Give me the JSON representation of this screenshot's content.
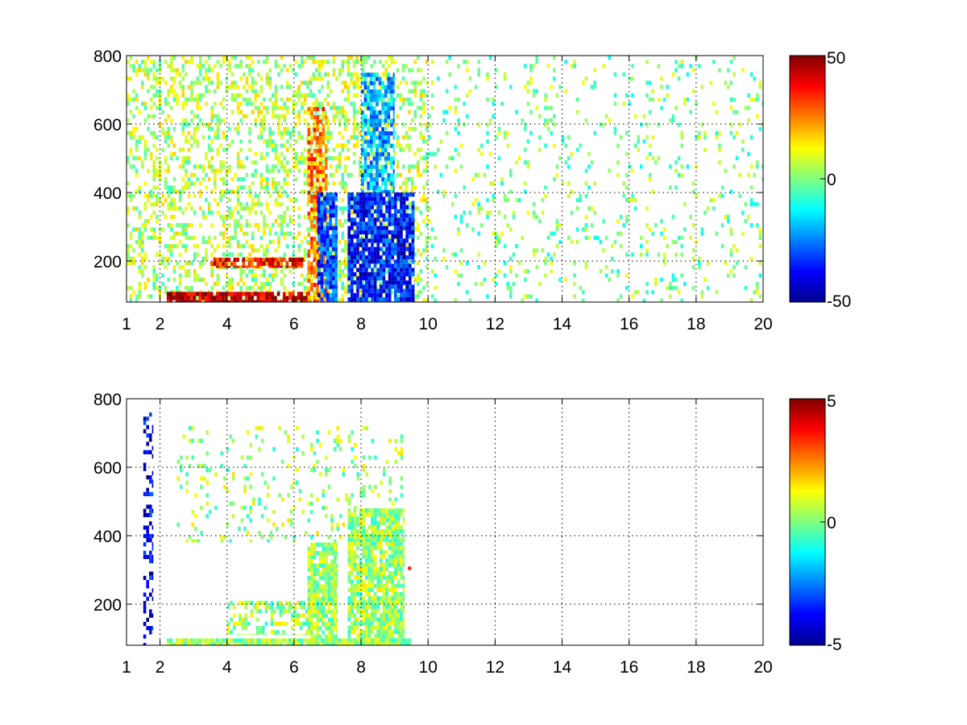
{
  "chart_data": [
    {
      "type": "heatmap",
      "title": "",
      "xlabel": "",
      "ylabel": "",
      "xlim": [
        1,
        20
      ],
      "ylim": [
        80,
        800
      ],
      "xticks": [
        1,
        2,
        4,
        6,
        8,
        10,
        12,
        14,
        16,
        18,
        20
      ],
      "yticks": [
        200,
        400,
        600,
        800
      ],
      "grid": true,
      "colormap": "jet",
      "colorbar": {
        "min": -50,
        "max": 50,
        "ticks": [
          -50,
          0,
          50
        ]
      },
      "regions": [
        {
          "x": [
            1.0,
            10.0
          ],
          "y": [
            80,
            800
          ],
          "value": 5,
          "density": 0.35
        },
        {
          "x": [
            2.2,
            6.5
          ],
          "y": [
            80,
            110
          ],
          "value": 45,
          "density": 0.9
        },
        {
          "x": [
            3.5,
            6.3
          ],
          "y": [
            180,
            210
          ],
          "value": 35,
          "density": 0.75
        },
        {
          "x": [
            6.4,
            7.0
          ],
          "y": [
            80,
            650
          ],
          "value": 25,
          "density": 0.7
        },
        {
          "x": [
            6.7,
            7.3
          ],
          "y": [
            80,
            400
          ],
          "value": -30,
          "density": 0.85
        },
        {
          "x": [
            7.6,
            9.6
          ],
          "y": [
            80,
            400
          ],
          "value": -35,
          "density": 0.85
        },
        {
          "x": [
            8.0,
            9.0
          ],
          "y": [
            400,
            750
          ],
          "value": -20,
          "density": 0.7
        },
        {
          "x": [
            10.0,
            20.0
          ],
          "y": [
            80,
            800
          ],
          "value": 0,
          "density": 0.1
        }
      ]
    },
    {
      "type": "heatmap",
      "title": "",
      "xlabel": "",
      "ylabel": "",
      "xlim": [
        1,
        20
      ],
      "ylim": [
        80,
        800
      ],
      "xticks": [
        1,
        2,
        4,
        6,
        8,
        10,
        12,
        14,
        16,
        18,
        20
      ],
      "yticks": [
        200,
        400,
        600,
        800
      ],
      "grid": true,
      "colormap": "jet",
      "colorbar": {
        "min": -5,
        "max": 5,
        "ticks": [
          -5,
          0,
          5
        ]
      },
      "regions": [
        {
          "x": [
            1.5,
            1.8
          ],
          "y": [
            80,
            760
          ],
          "value": -4,
          "density": 0.35
        },
        {
          "x": [
            2.2,
            9.5
          ],
          "y": [
            80,
            100
          ],
          "value": 0.3,
          "density": 0.95
        },
        {
          "x": [
            4.0,
            6.5
          ],
          "y": [
            110,
            210
          ],
          "value": 0.3,
          "density": 0.55
        },
        {
          "x": [
            6.4,
            7.3
          ],
          "y": [
            80,
            380
          ],
          "value": 0.3,
          "density": 0.85
        },
        {
          "x": [
            7.6,
            9.3
          ],
          "y": [
            80,
            480
          ],
          "value": 0.3,
          "density": 0.85
        },
        {
          "x": [
            2.5,
            9.3
          ],
          "y": [
            380,
            720
          ],
          "value": 0.3,
          "density": 0.12
        },
        {
          "x": [
            9.4,
            9.5
          ],
          "y": [
            300,
            310
          ],
          "value": 3.5,
          "density": 1.0
        }
      ]
    }
  ]
}
